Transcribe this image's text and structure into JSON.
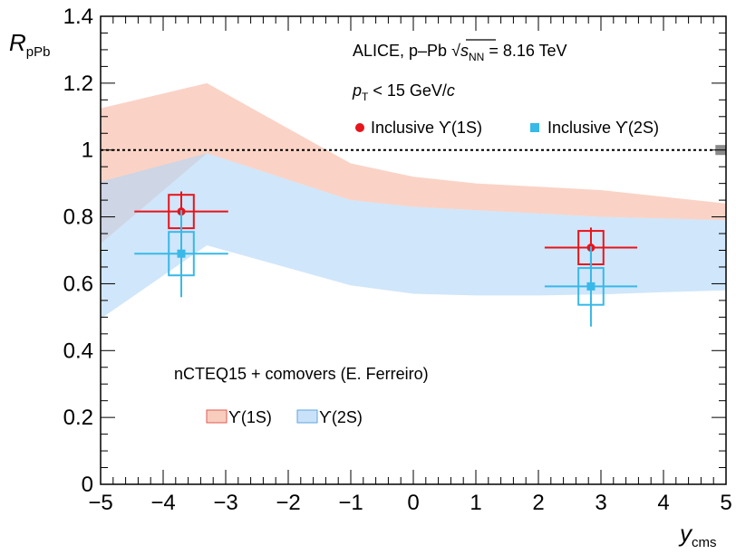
{
  "chart_data": {
    "type": "scatter",
    "xlabel": "y",
    "xlabel_sub": "cms",
    "ylabel": "R",
    "ylabel_sub": "pPb",
    "xlim": [
      -5,
      5
    ],
    "ylim": [
      0,
      1.4
    ],
    "x_ticks": [
      -5,
      -4,
      -3,
      -2,
      -1,
      0,
      1,
      2,
      3,
      4,
      5
    ],
    "x_tick_labels": [
      "−5",
      "−4",
      "−3",
      "−2",
      "−1",
      "0",
      "1",
      "2",
      "3",
      "4",
      "5"
    ],
    "y_ticks": [
      0,
      0.2,
      0.4,
      0.6,
      0.8,
      1,
      1.2,
      1.4
    ],
    "y_tick_labels": [
      "0",
      "0.2",
      "0.4",
      "0.6",
      "0.8",
      "1",
      "1.2",
      "1.4"
    ],
    "reference_line": 1.0,
    "global_uncertainty_box": {
      "x": 4.83,
      "low": 0.985,
      "high": 1.015
    },
    "annotations": {
      "experiment_prefix": "ALICE, p–Pb ",
      "sqrt": "√",
      "s": "s",
      "s_sub": "NN",
      "energy": " = 8.16 TeV",
      "pt_p": "p",
      "pt_sub": "T",
      "pt_cut": " < 15 GeV/",
      "pt_c": "c",
      "model": "nCTEQ15 + comovers (E. Ferreiro)"
    },
    "series": [
      {
        "name": "Inclusive ϒ(1S)",
        "color": "#e8141b",
        "marker": "circle",
        "points": [
          {
            "x": -3.71,
            "y": 0.816,
            "xerr": [
              0.75,
              0.75
            ],
            "stat": [
              0.06,
              0.06
            ],
            "syst": 0.05,
            "box_half_width": 0.2
          },
          {
            "x": 2.84,
            "y": 0.708,
            "xerr": [
              0.74,
              0.74
            ],
            "stat": [
              0.06,
              0.06
            ],
            "syst": 0.05,
            "box_half_width": 0.2
          }
        ]
      },
      {
        "name": "Inclusive ϒ(2S)",
        "color": "#38b9e8",
        "marker": "square",
        "points": [
          {
            "x": -3.71,
            "y": 0.69,
            "xerr": [
              0.75,
              0.75
            ],
            "stat": [
              0.13,
              0.13
            ],
            "syst": 0.065,
            "box_half_width": 0.2
          },
          {
            "x": 2.84,
            "y": 0.592,
            "xerr": [
              0.74,
              0.74
            ],
            "stat": [
              0.12,
              0.12
            ],
            "syst": 0.055,
            "box_half_width": 0.2
          }
        ]
      }
    ],
    "bands": [
      {
        "name": "ϒ(1S)",
        "fill": "#f7b8a3",
        "stroke": "#e05a50",
        "opacity": 0.62,
        "x": [
          -5,
          -3.3,
          -1,
          0,
          1,
          2,
          3,
          4,
          5
        ],
        "upper": [
          1.125,
          1.2,
          0.96,
          0.92,
          0.9,
          0.89,
          0.88,
          0.86,
          0.84
        ],
        "lower": [
          0.72,
          0.99,
          0.85,
          0.83,
          0.82,
          0.81,
          0.8,
          0.795,
          0.79
        ]
      },
      {
        "name": "ϒ(2S)",
        "fill": "#b3d6f7",
        "stroke": "#5da6e0",
        "opacity": 0.62,
        "x": [
          -5,
          -3.3,
          -1,
          0,
          1,
          2,
          3,
          4,
          5
        ],
        "upper": [
          0.905,
          0.99,
          0.85,
          0.83,
          0.82,
          0.81,
          0.8,
          0.795,
          0.79
        ],
        "lower": [
          0.495,
          0.715,
          0.595,
          0.57,
          0.565,
          0.565,
          0.568,
          0.575,
          0.58
        ]
      }
    ]
  }
}
